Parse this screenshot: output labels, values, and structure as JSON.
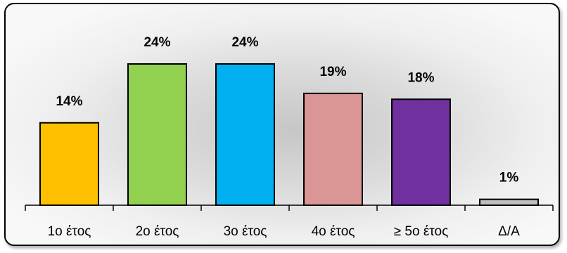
{
  "chart_data": {
    "type": "bar",
    "title": "",
    "xlabel": "",
    "ylabel": "",
    "categories": [
      "1ο έτος",
      "2ο έτος",
      "3ο έτος",
      "4ο έτος",
      "≥ 5ο έτος",
      "Δ/Α"
    ],
    "values": [
      14,
      24,
      24,
      19,
      18,
      1
    ],
    "value_labels": [
      "14%",
      "24%",
      "24%",
      "19%",
      "18%",
      "1%"
    ],
    "colors": [
      "#FFC000",
      "#92D050",
      "#00B0F0",
      "#DA9694",
      "#7030A0",
      "#BFBFBF"
    ],
    "ylim": [
      0,
      28
    ],
    "grid": false,
    "legend": "none"
  }
}
